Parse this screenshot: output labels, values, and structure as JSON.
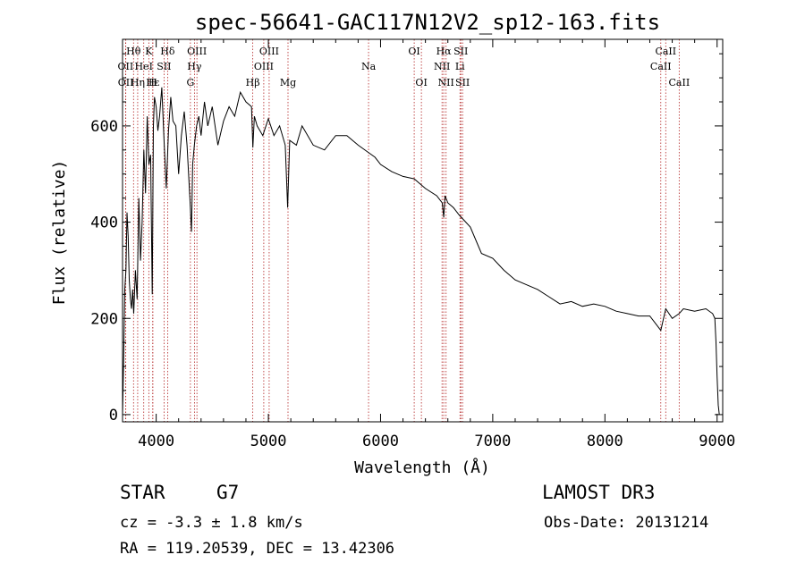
{
  "chart_data": {
    "type": "line",
    "title": "spec-56641-GAC117N12V2_sp12-163.fits",
    "xlabel": "Wavelength (Å)",
    "ylabel": "Flux (relative)",
    "xlim": [
      3700,
      9050
    ],
    "ylim": [
      -15,
      780
    ],
    "xticks": [
      4000,
      5000,
      6000,
      7000,
      8000,
      9000
    ],
    "yticks": [
      0,
      200,
      400,
      600
    ],
    "grid": false,
    "series": [
      {
        "name": "spectrum",
        "x": [
          3700,
          3710,
          3720,
          3730,
          3740,
          3750,
          3760,
          3770,
          3780,
          3790,
          3800,
          3815,
          3830,
          3845,
          3860,
          3875,
          3890,
          3905,
          3920,
          3935,
          3950,
          3965,
          3975,
          3985,
          4000,
          4015,
          4030,
          4050,
          4070,
          4090,
          4110,
          4130,
          4150,
          4175,
          4200,
          4225,
          4250,
          4275,
          4300,
          4315,
          4325,
          4340,
          4360,
          4380,
          4400,
          4430,
          4460,
          4500,
          4550,
          4600,
          4650,
          4700,
          4750,
          4800,
          4850,
          4862,
          4875,
          4900,
          4950,
          5000,
          5050,
          5100,
          5150,
          5172,
          5190,
          5250,
          5300,
          5400,
          5500,
          5600,
          5700,
          5800,
          5890,
          5950,
          6000,
          6100,
          6200,
          6300,
          6400,
          6500,
          6550,
          6563,
          6575,
          6600,
          6650,
          6700,
          6800,
          6900,
          7000,
          7100,
          7200,
          7300,
          7400,
          7500,
          7600,
          7700,
          7800,
          7900,
          8000,
          8100,
          8200,
          8300,
          8400,
          8498,
          8542,
          8600,
          8662,
          8700,
          8800,
          8900,
          8960,
          8980,
          8990,
          9000,
          9010,
          9020
        ],
        "y": [
          0,
          120,
          260,
          300,
          420,
          370,
          280,
          240,
          220,
          260,
          210,
          300,
          240,
          450,
          320,
          400,
          550,
          460,
          620,
          520,
          540,
          250,
          600,
          660,
          640,
          590,
          620,
          680,
          570,
          470,
          590,
          660,
          610,
          600,
          500,
          580,
          630,
          560,
          450,
          380,
          520,
          560,
          600,
          620,
          580,
          650,
          600,
          640,
          560,
          610,
          640,
          620,
          670,
          650,
          640,
          555,
          620,
          600,
          580,
          615,
          580,
          600,
          560,
          430,
          570,
          560,
          600,
          560,
          550,
          580,
          580,
          560,
          545,
          535,
          520,
          505,
          495,
          490,
          470,
          455,
          440,
          410,
          455,
          440,
          430,
          415,
          390,
          335,
          325,
          300,
          280,
          270,
          260,
          245,
          230,
          235,
          225,
          230,
          225,
          215,
          210,
          205,
          205,
          175,
          220,
          200,
          210,
          220,
          215,
          220,
          210,
          200,
          150,
          80,
          20,
          0
        ]
      }
    ],
    "line_markers": [
      {
        "label": "Hθ",
        "x": 3798,
        "row": 1
      },
      {
        "label": "OII",
        "x": 3727,
        "row": 2
      },
      {
        "label": "OII",
        "x": 3729,
        "row": 3
      },
      {
        "label": "Hε",
        "x": 3970,
        "row": 3
      },
      {
        "label": "Hη",
        "x": 3835,
        "row": 3
      },
      {
        "label": "HeI",
        "x": 3889,
        "row": 2
      },
      {
        "label": "K",
        "x": 3934,
        "row": 1
      },
      {
        "label": "H",
        "x": 3969,
        "row": 3
      },
      {
        "label": "Hδ",
        "x": 4102,
        "row": 1
      },
      {
        "label": "SII",
        "x": 4070,
        "row": 2
      },
      {
        "label": "OIII",
        "x": 4363,
        "row": 1
      },
      {
        "label": "Hγ",
        "x": 4341,
        "row": 2
      },
      {
        "label": "G",
        "x": 4305,
        "row": 3
      },
      {
        "label": "OIII",
        "x": 5007,
        "row": 1
      },
      {
        "label": "OIII",
        "x": 4959,
        "row": 2
      },
      {
        "label": "Hβ",
        "x": 4861,
        "row": 3
      },
      {
        "label": "Mg",
        "x": 5175,
        "row": 3
      },
      {
        "label": "Na",
        "x": 5893,
        "row": 2
      },
      {
        "label": "OI",
        "x": 6300,
        "row": 1
      },
      {
        "label": "OI",
        "x": 6364,
        "row": 3
      },
      {
        "label": "Hα",
        "x": 6563,
        "row": 1
      },
      {
        "label": "SII",
        "x": 6716,
        "row": 1
      },
      {
        "label": "NII",
        "x": 6548,
        "row": 2
      },
      {
        "label": "Li",
        "x": 6708,
        "row": 2
      },
      {
        "label": "NII",
        "x": 6584,
        "row": 3
      },
      {
        "label": "SII",
        "x": 6731,
        "row": 3
      },
      {
        "label": "CaII",
        "x": 8542,
        "row": 1
      },
      {
        "label": "CaII",
        "x": 8498,
        "row": 2
      },
      {
        "label": "CaII",
        "x": 8662,
        "row": 3
      }
    ]
  },
  "info": {
    "object_type": "STAR",
    "subclass": "G7",
    "survey": "LAMOST DR3",
    "cz": "cz = -3.3 ± 1.8 km/s",
    "obs_date": "Obs-Date: 20131214",
    "coords": "RA = 119.20539, DEC =  13.42306"
  },
  "colors": {
    "spectrum": "#000000",
    "marker_line": "#b22222",
    "axis": "#000000"
  }
}
